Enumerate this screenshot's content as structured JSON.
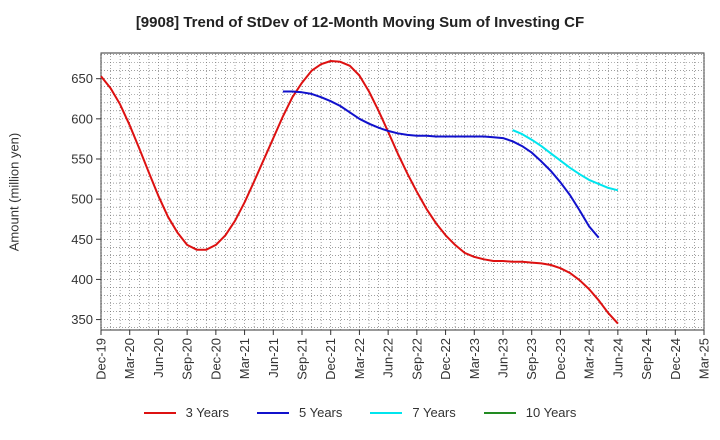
{
  "chart_data": {
    "type": "line",
    "title": "[9908]  Trend of StDev of 12-Month Moving Sum of Investing CF",
    "ylabel": "Amount (million yen)",
    "xlabel": "",
    "ylim": [
      337,
      682
    ],
    "yticks": [
      350,
      400,
      450,
      500,
      550,
      600,
      650
    ],
    "x_ticks": [
      "Dec-19",
      "Mar-20",
      "Jun-20",
      "Sep-20",
      "Dec-20",
      "Mar-21",
      "Jun-21",
      "Sep-21",
      "Dec-21",
      "Mar-22",
      "Jun-22",
      "Sep-22",
      "Dec-22",
      "Mar-23",
      "Jun-23",
      "Sep-23",
      "Dec-23",
      "Mar-24",
      "Jun-24",
      "Sep-24",
      "Dec-24",
      "Mar-25"
    ],
    "grid": true,
    "legend_position": "bottom",
    "series": [
      {
        "name": "3 Years",
        "color": "#dd1111",
        "points": [
          [
            "Dec-19",
            653
          ],
          [
            "Jan-20",
            638
          ],
          [
            "Feb-20",
            618
          ],
          [
            "Mar-20",
            592
          ],
          [
            "Apr-20",
            563
          ],
          [
            "May-20",
            533
          ],
          [
            "Jun-20",
            504
          ],
          [
            "Jul-20",
            478
          ],
          [
            "Aug-20",
            458
          ],
          [
            "Sep-20",
            443
          ],
          [
            "Oct-20",
            437
          ],
          [
            "Nov-20",
            437
          ],
          [
            "Dec-20",
            443
          ],
          [
            "Jan-21",
            455
          ],
          [
            "Feb-21",
            473
          ],
          [
            "Mar-21",
            496
          ],
          [
            "Apr-21",
            522
          ],
          [
            "May-21",
            549
          ],
          [
            "Jun-21",
            576
          ],
          [
            "Jul-21",
            603
          ],
          [
            "Aug-21",
            627
          ],
          [
            "Sep-21",
            645
          ],
          [
            "Oct-21",
            660
          ],
          [
            "Nov-21",
            668
          ],
          [
            "Dec-21",
            672
          ],
          [
            "Jan-22",
            671
          ],
          [
            "Feb-22",
            666
          ],
          [
            "Mar-22",
            654
          ],
          [
            "Apr-22",
            634
          ],
          [
            "May-22",
            610
          ],
          [
            "Jun-22",
            584
          ],
          [
            "Jul-22",
            557
          ],
          [
            "Aug-22",
            532
          ],
          [
            "Sep-22",
            509
          ],
          [
            "Oct-22",
            488
          ],
          [
            "Nov-22",
            470
          ],
          [
            "Dec-22",
            455
          ],
          [
            "Jan-23",
            443
          ],
          [
            "Feb-23",
            433
          ],
          [
            "Mar-23",
            428
          ],
          [
            "Apr-23",
            425
          ],
          [
            "May-23",
            423
          ],
          [
            "Jun-23",
            423
          ],
          [
            "Jul-23",
            422
          ],
          [
            "Aug-23",
            422
          ],
          [
            "Sep-23",
            421
          ],
          [
            "Oct-23",
            420
          ],
          [
            "Nov-23",
            418
          ],
          [
            "Dec-23",
            414
          ],
          [
            "Jan-24",
            408
          ],
          [
            "Feb-24",
            399
          ],
          [
            "Mar-24",
            388
          ],
          [
            "Apr-24",
            374
          ],
          [
            "May-24",
            358
          ],
          [
            "Jun-24",
            345
          ]
        ]
      },
      {
        "name": "5 Years",
        "color": "#1111cc",
        "points": [
          [
            "Jul-21",
            634
          ],
          [
            "Aug-21",
            634
          ],
          [
            "Sep-21",
            633
          ],
          [
            "Oct-21",
            631
          ],
          [
            "Nov-21",
            627
          ],
          [
            "Dec-21",
            622
          ],
          [
            "Jan-22",
            616
          ],
          [
            "Feb-22",
            608
          ],
          [
            "Mar-22",
            600
          ],
          [
            "Apr-22",
            594
          ],
          [
            "May-22",
            589
          ],
          [
            "Jun-22",
            585
          ],
          [
            "Jul-22",
            582
          ],
          [
            "Aug-22",
            580
          ],
          [
            "Sep-22",
            579
          ],
          [
            "Oct-22",
            579
          ],
          [
            "Nov-22",
            578
          ],
          [
            "Dec-22",
            578
          ],
          [
            "Jan-23",
            578
          ],
          [
            "Feb-23",
            578
          ],
          [
            "Mar-23",
            578
          ],
          [
            "Apr-23",
            578
          ],
          [
            "May-23",
            577
          ],
          [
            "Jun-23",
            576
          ],
          [
            "Jul-23",
            572
          ],
          [
            "Aug-23",
            566
          ],
          [
            "Sep-23",
            558
          ],
          [
            "Oct-23",
            547
          ],
          [
            "Nov-23",
            535
          ],
          [
            "Dec-23",
            521
          ],
          [
            "Jan-24",
            505
          ],
          [
            "Feb-24",
            486
          ],
          [
            "Mar-24",
            466
          ],
          [
            "Apr-24",
            452
          ]
        ]
      },
      {
        "name": "7 Years",
        "color": "#00e5ee",
        "points": [
          [
            "Jul-23",
            586
          ],
          [
            "Aug-23",
            581
          ],
          [
            "Sep-23",
            574
          ],
          [
            "Oct-23",
            566
          ],
          [
            "Nov-23",
            557
          ],
          [
            "Dec-23",
            548
          ],
          [
            "Jan-24",
            539
          ],
          [
            "Feb-24",
            531
          ],
          [
            "Mar-24",
            524
          ],
          [
            "Apr-24",
            519
          ],
          [
            "May-24",
            514
          ],
          [
            "Jun-24",
            511
          ]
        ]
      },
      {
        "name": "10 Years",
        "color": "#228b22",
        "points": []
      }
    ]
  }
}
